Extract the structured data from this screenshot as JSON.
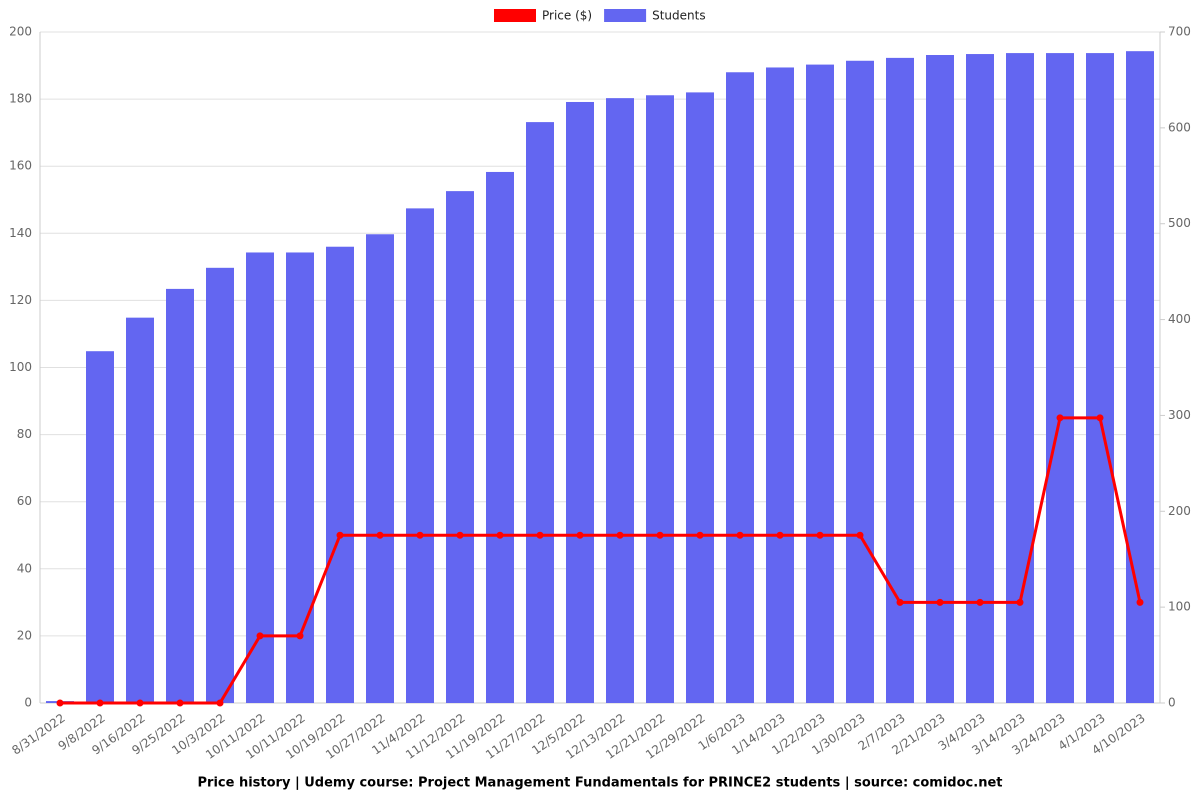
{
  "chart_data": {
    "type": "bar-line",
    "title": "Price history | Udemy course: Project Management Fundamentals for PRINCE2 students | source: comidoc.net",
    "categories": [
      "8/31/2022",
      "9/8/2022",
      "9/16/2022",
      "9/25/2022",
      "10/3/2022",
      "10/11/2022",
      "10/11/2022",
      "10/19/2022",
      "10/27/2022",
      "11/4/2022",
      "11/12/2022",
      "11/19/2022",
      "11/27/2022",
      "12/5/2022",
      "12/13/2022",
      "12/21/2022",
      "12/29/2022",
      "1/6/2023",
      "1/14/2023",
      "1/22/2023",
      "1/30/2023",
      "2/7/2023",
      "2/21/2023",
      "3/4/2023",
      "3/14/2023",
      "3/24/2023",
      "4/1/2023",
      "4/10/2023"
    ],
    "series": [
      {
        "name": "Price ($)",
        "color": "#ff0000",
        "type": "line",
        "axis": "y",
        "values": [
          0,
          0,
          0,
          0,
          0,
          20,
          20,
          50,
          50,
          50,
          50,
          50,
          50,
          50,
          50,
          50,
          50,
          50,
          50,
          50,
          50,
          30,
          30,
          30,
          30,
          85,
          85,
          30
        ]
      },
      {
        "name": "Students",
        "color": "#6366f1",
        "type": "bar",
        "axis": "y2",
        "values": [
          2,
          367,
          402,
          432,
          454,
          470,
          470,
          476,
          489,
          516,
          534,
          554,
          606,
          627,
          631,
          634,
          637,
          658,
          663,
          666,
          670,
          673,
          676,
          677,
          678,
          678,
          678,
          680
        ]
      }
    ],
    "ylim": [
      0,
      200
    ],
    "yticks": [
      0,
      20,
      40,
      60,
      80,
      100,
      120,
      140,
      160,
      180,
      200
    ],
    "y2lim": [
      0,
      700
    ],
    "y2ticks": [
      0,
      100,
      200,
      300,
      400,
      500,
      600,
      700
    ],
    "grid": true,
    "legend": "top"
  }
}
